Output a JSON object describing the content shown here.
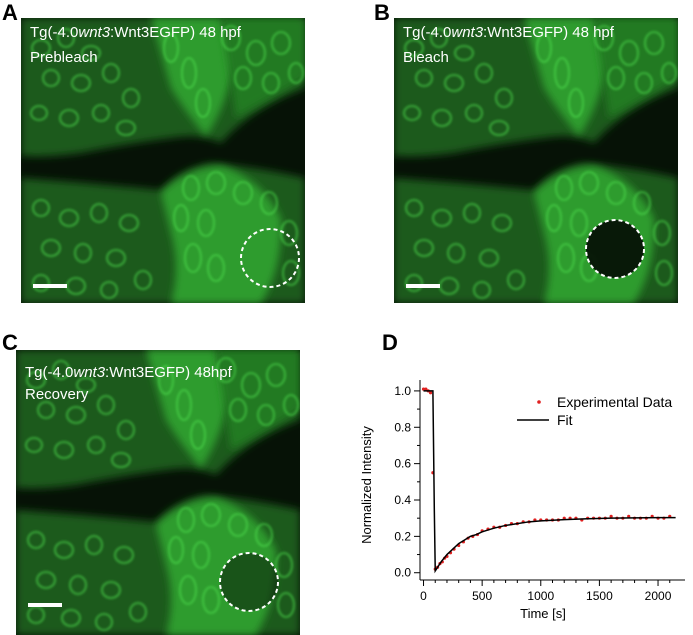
{
  "panels": [
    {
      "letter": "A",
      "genotype_prefix": "Tg(-4.0",
      "genotype_gene": "wnt3",
      "genotype_suffix": ":Wnt3EGFP) 48 hpf",
      "stage": "Prebleach",
      "roi": "intact"
    },
    {
      "letter": "B",
      "genotype_prefix": "Tg(-4.0",
      "genotype_gene": "wnt3",
      "genotype_suffix": ":Wnt3EGFP) 48 hpf",
      "stage": "Bleach",
      "roi": "bleached"
    },
    {
      "letter": "C",
      "genotype_prefix": "Tg(-4.0",
      "genotype_gene": "wnt3",
      "genotype_suffix": ":Wnt3EGFP) 48hpf",
      "stage": "Recovery",
      "roi": "recovering"
    }
  ],
  "colors": {
    "fluorescence": "#38c838",
    "background": "#061206",
    "data_points": "#e02020",
    "fit": "#000000"
  },
  "chart_data": {
    "panel_letter": "D",
    "type": "scatter",
    "xlabel": "Time [s]",
    "ylabel": "Normalized Intensity",
    "xlim": [
      -30,
      2230
    ],
    "ylim": [
      -0.04,
      1.06
    ],
    "xticks": [
      0,
      500,
      1000,
      1500,
      2000
    ],
    "yticks": [
      0.0,
      0.2,
      0.4,
      0.6,
      0.8,
      1.0
    ],
    "xtick_labels": [
      "0",
      "500",
      "1000",
      "1500",
      "2000"
    ],
    "ytick_labels": [
      "0.0",
      "0.2",
      "0.4",
      "0.6",
      "0.8",
      "1.0"
    ],
    "legend": {
      "placement": "top-right",
      "entries": [
        "Experimental Data",
        "Fit"
      ]
    },
    "series": [
      {
        "name": "Experimental Data",
        "marker": "dot",
        "x": [
          0,
          20,
          40,
          60,
          80,
          100,
          120,
          140,
          160,
          180,
          200,
          230,
          260,
          300,
          340,
          380,
          420,
          460,
          500,
          550,
          600,
          650,
          700,
          750,
          800,
          850,
          900,
          950,
          1000,
          1050,
          1100,
          1150,
          1200,
          1250,
          1300,
          1350,
          1400,
          1450,
          1500,
          1550,
          1600,
          1650,
          1700,
          1750,
          1800,
          1850,
          1900,
          1950,
          2000,
          2050,
          2100
        ],
        "y": [
          1.01,
          1.01,
          1.0,
          0.99,
          0.55,
          0.02,
          0.03,
          0.05,
          0.06,
          0.08,
          0.09,
          0.11,
          0.13,
          0.15,
          0.17,
          0.19,
          0.2,
          0.21,
          0.23,
          0.24,
          0.25,
          0.25,
          0.26,
          0.27,
          0.27,
          0.28,
          0.28,
          0.29,
          0.29,
          0.29,
          0.29,
          0.29,
          0.3,
          0.3,
          0.3,
          0.29,
          0.3,
          0.3,
          0.3,
          0.3,
          0.31,
          0.3,
          0.3,
          0.31,
          0.3,
          0.3,
          0.3,
          0.31,
          0.3,
          0.3,
          0.31
        ]
      },
      {
        "name": "Fit",
        "marker": "line",
        "x": [
          0,
          80,
          92,
          100,
          120,
          150,
          200,
          250,
          300,
          350,
          400,
          450,
          500,
          600,
          700,
          800,
          900,
          1000,
          1200,
          1400,
          1600,
          1800,
          2000,
          2150
        ],
        "y": [
          1.0,
          1.0,
          0.35,
          0.01,
          0.03,
          0.06,
          0.1,
          0.13,
          0.16,
          0.18,
          0.2,
          0.21,
          0.225,
          0.245,
          0.26,
          0.27,
          0.28,
          0.285,
          0.292,
          0.297,
          0.3,
          0.302,
          0.303,
          0.303
        ]
      }
    ]
  }
}
